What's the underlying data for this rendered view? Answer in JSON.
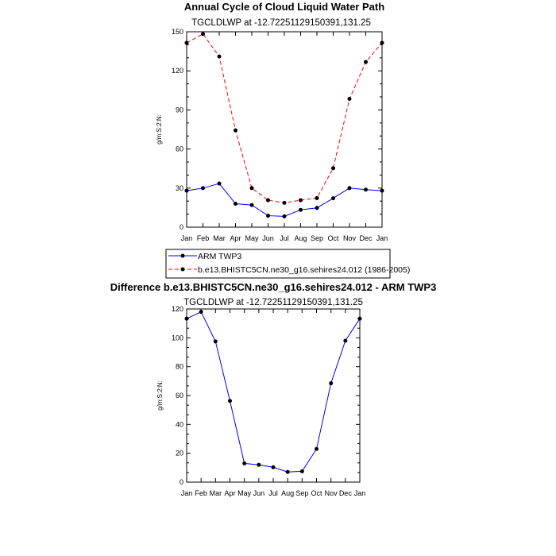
{
  "chart_data": [
    {
      "type": "line",
      "title": "Annual Cycle of Cloud Liquid Water Path",
      "subtitle": "TGCLDLWP at -12.72251129150391,131.25",
      "ylabel": "g/m:S:2:N:",
      "xlabel": "",
      "categories": [
        "Jan",
        "Feb",
        "Mar",
        "Apr",
        "May",
        "Jun",
        "Jul",
        "Aug",
        "Sep",
        "Oct",
        "Nov",
        "Dec",
        "Jan"
      ],
      "ylim": [
        0,
        150
      ],
      "yticks": [
        0,
        30,
        60,
        90,
        120,
        150
      ],
      "series": [
        {
          "name": "ARM TWP3",
          "color": "#0000ff",
          "dash": "solid",
          "values": [
            28,
            30,
            33.5,
            18,
            17,
            8.8,
            8.3,
            13.3,
            14.8,
            22.2,
            30,
            28.8,
            28
          ]
        },
        {
          "name": "b.e13.BHISTC5CN.ne30_g16.sehires24.012 (1986-2005)",
          "color": "#ff0000",
          "dash": "dashed",
          "values": [
            141.5,
            148.3,
            131,
            74.3,
            30,
            20.7,
            18.7,
            20.7,
            22.3,
            45.3,
            98.5,
            126.8,
            141.5
          ]
        }
      ]
    },
    {
      "type": "line",
      "title": "Difference b.e13.BHISTC5CN.ne30_g16.sehires24.012 - ARM TWP3",
      "subtitle": "TGCLDLWP at -12.72251129150391,131.25",
      "ylabel": "g/m:S:2:N:",
      "xlabel": "",
      "categories": [
        "Jan",
        "Feb",
        "Mar",
        "Apr",
        "May",
        "Jun",
        "Jul",
        "Aug",
        "Sep",
        "Oct",
        "Nov",
        "Dec",
        "Jan"
      ],
      "ylim": [
        0,
        120
      ],
      "yticks": [
        0,
        20,
        40,
        60,
        80,
        100,
        120
      ],
      "series": [
        {
          "name": "Difference",
          "color": "#0000ff",
          "dash": "solid",
          "values": [
            113.3,
            118,
            97.5,
            56.3,
            13,
            12,
            10.3,
            7,
            7.5,
            23,
            68.5,
            98,
            113.3
          ]
        }
      ]
    }
  ]
}
